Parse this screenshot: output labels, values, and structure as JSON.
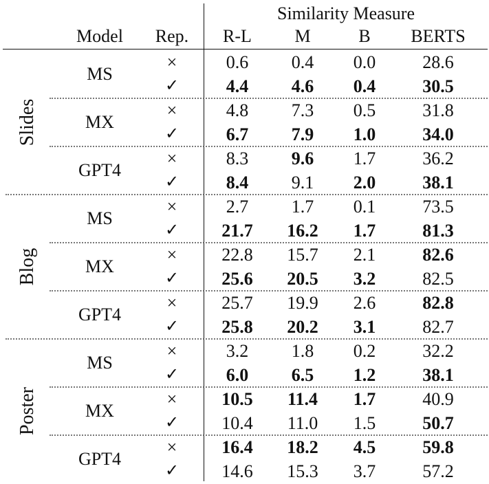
{
  "table": {
    "header": {
      "group_title": "Similarity Measure",
      "col_model": "Model",
      "col_rep": "Rep.",
      "metrics": [
        "R-L",
        "M",
        "B",
        "BERTS"
      ]
    },
    "rep_symbols": {
      "no": "×",
      "yes": "✓"
    },
    "sections": [
      {
        "label": "Slides",
        "models": [
          {
            "name": "MS",
            "rows": [
              {
                "rep": "no",
                "values": [
                  "0.6",
                  "0.4",
                  "0.0",
                  "28.6"
                ],
                "bold": [
                  false,
                  false,
                  false,
                  false
                ]
              },
              {
                "rep": "yes",
                "values": [
                  "4.4",
                  "4.6",
                  "0.4",
                  "30.5"
                ],
                "bold": [
                  true,
                  true,
                  true,
                  true
                ]
              }
            ]
          },
          {
            "name": "MX",
            "rows": [
              {
                "rep": "no",
                "values": [
                  "4.8",
                  "7.3",
                  "0.5",
                  "31.8"
                ],
                "bold": [
                  false,
                  false,
                  false,
                  false
                ]
              },
              {
                "rep": "yes",
                "values": [
                  "6.7",
                  "7.9",
                  "1.0",
                  "34.0"
                ],
                "bold": [
                  true,
                  true,
                  true,
                  true
                ]
              }
            ]
          },
          {
            "name": "GPT4",
            "rows": [
              {
                "rep": "no",
                "values": [
                  "8.3",
                  "9.6",
                  "1.7",
                  "36.2"
                ],
                "bold": [
                  false,
                  true,
                  false,
                  false
                ]
              },
              {
                "rep": "yes",
                "values": [
                  "8.4",
                  "9.1",
                  "2.0",
                  "38.1"
                ],
                "bold": [
                  true,
                  false,
                  true,
                  true
                ]
              }
            ]
          }
        ]
      },
      {
        "label": "Blog",
        "models": [
          {
            "name": "MS",
            "rows": [
              {
                "rep": "no",
                "values": [
                  "2.7",
                  "1.7",
                  "0.1",
                  "73.5"
                ],
                "bold": [
                  false,
                  false,
                  false,
                  false
                ]
              },
              {
                "rep": "yes",
                "values": [
                  "21.7",
                  "16.2",
                  "1.7",
                  "81.3"
                ],
                "bold": [
                  true,
                  true,
                  true,
                  true
                ]
              }
            ]
          },
          {
            "name": "MX",
            "rows": [
              {
                "rep": "no",
                "values": [
                  "22.8",
                  "15.7",
                  "2.1",
                  "82.6"
                ],
                "bold": [
                  false,
                  false,
                  false,
                  true
                ]
              },
              {
                "rep": "yes",
                "values": [
                  "25.6",
                  "20.5",
                  "3.2",
                  "82.5"
                ],
                "bold": [
                  true,
                  true,
                  true,
                  false
                ]
              }
            ]
          },
          {
            "name": "GPT4",
            "rows": [
              {
                "rep": "no",
                "values": [
                  "25.7",
                  "19.9",
                  "2.6",
                  "82.8"
                ],
                "bold": [
                  false,
                  false,
                  false,
                  true
                ]
              },
              {
                "rep": "yes",
                "values": [
                  "25.8",
                  "20.2",
                  "3.1",
                  "82.7"
                ],
                "bold": [
                  true,
                  true,
                  true,
                  false
                ]
              }
            ]
          }
        ]
      },
      {
        "label": "Poster",
        "models": [
          {
            "name": "MS",
            "rows": [
              {
                "rep": "no",
                "values": [
                  "3.2",
                  "1.8",
                  "0.2",
                  "32.2"
                ],
                "bold": [
                  false,
                  false,
                  false,
                  false
                ]
              },
              {
                "rep": "yes",
                "values": [
                  "6.0",
                  "6.5",
                  "1.2",
                  "38.1"
                ],
                "bold": [
                  true,
                  true,
                  true,
                  true
                ]
              }
            ]
          },
          {
            "name": "MX",
            "rows": [
              {
                "rep": "no",
                "values": [
                  "10.5",
                  "11.4",
                  "1.7",
                  "40.9"
                ],
                "bold": [
                  true,
                  true,
                  true,
                  false
                ]
              },
              {
                "rep": "yes",
                "values": [
                  "10.4",
                  "11.0",
                  "1.5",
                  "50.7"
                ],
                "bold": [
                  false,
                  false,
                  false,
                  true
                ]
              }
            ]
          },
          {
            "name": "GPT4",
            "rows": [
              {
                "rep": "no",
                "values": [
                  "16.4",
                  "18.2",
                  "4.5",
                  "59.8"
                ],
                "bold": [
                  true,
                  true,
                  true,
                  true
                ]
              },
              {
                "rep": "yes",
                "values": [
                  "14.6",
                  "15.3",
                  "3.7",
                  "57.2"
                ],
                "bold": [
                  false,
                  false,
                  false,
                  false
                ]
              }
            ]
          }
        ]
      }
    ]
  }
}
